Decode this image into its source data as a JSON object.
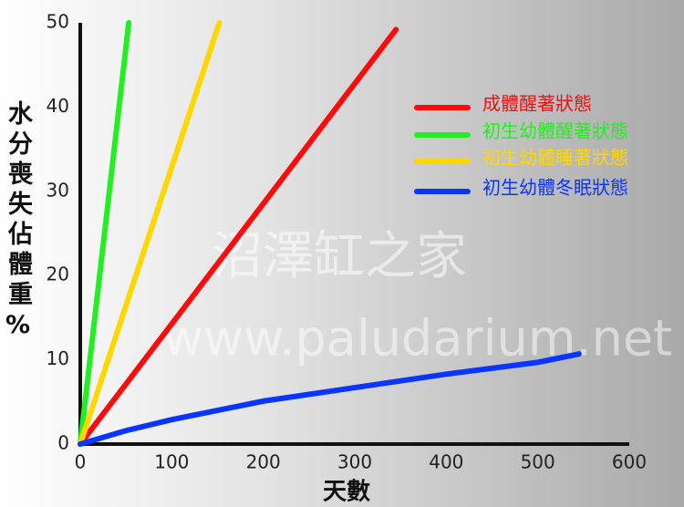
{
  "chart_data": {
    "type": "line",
    "x_label": "天數",
    "y_label": "水分喪失佔體重%",
    "watermarks": [
      "沼澤缸之家",
      "www.paludarium.net"
    ],
    "xlim": [
      0,
      600
    ],
    "xticks": [
      0,
      100,
      200,
      300,
      400,
      500,
      600
    ],
    "ylim": [
      0,
      50
    ],
    "yticks": [
      0,
      10,
      20,
      30,
      40,
      50
    ],
    "grid": false,
    "legend": "upper right",
    "series": [
      {
        "name": "成體醒著狀態",
        "color": "#ff0a0a",
        "x": [
          0,
          345
        ],
        "values": [
          0,
          49.2
        ]
      },
      {
        "name": "初生幼體醒著狀態",
        "color": "#22ee22",
        "x": [
          0,
          53
        ],
        "values": [
          0,
          50
        ]
      },
      {
        "name": "初生幼體睡著狀態",
        "color": "#ffd700",
        "x": [
          0,
          152
        ],
        "values": [
          0,
          50
        ]
      },
      {
        "name": "初生幼體冬眠狀態",
        "color": "#0a35ff",
        "x": [
          0,
          50,
          100,
          200,
          300,
          400,
          500,
          545
        ],
        "values": [
          0,
          1.6,
          2.9,
          5.1,
          6.7,
          8.3,
          9.7,
          10.7
        ]
      }
    ]
  }
}
